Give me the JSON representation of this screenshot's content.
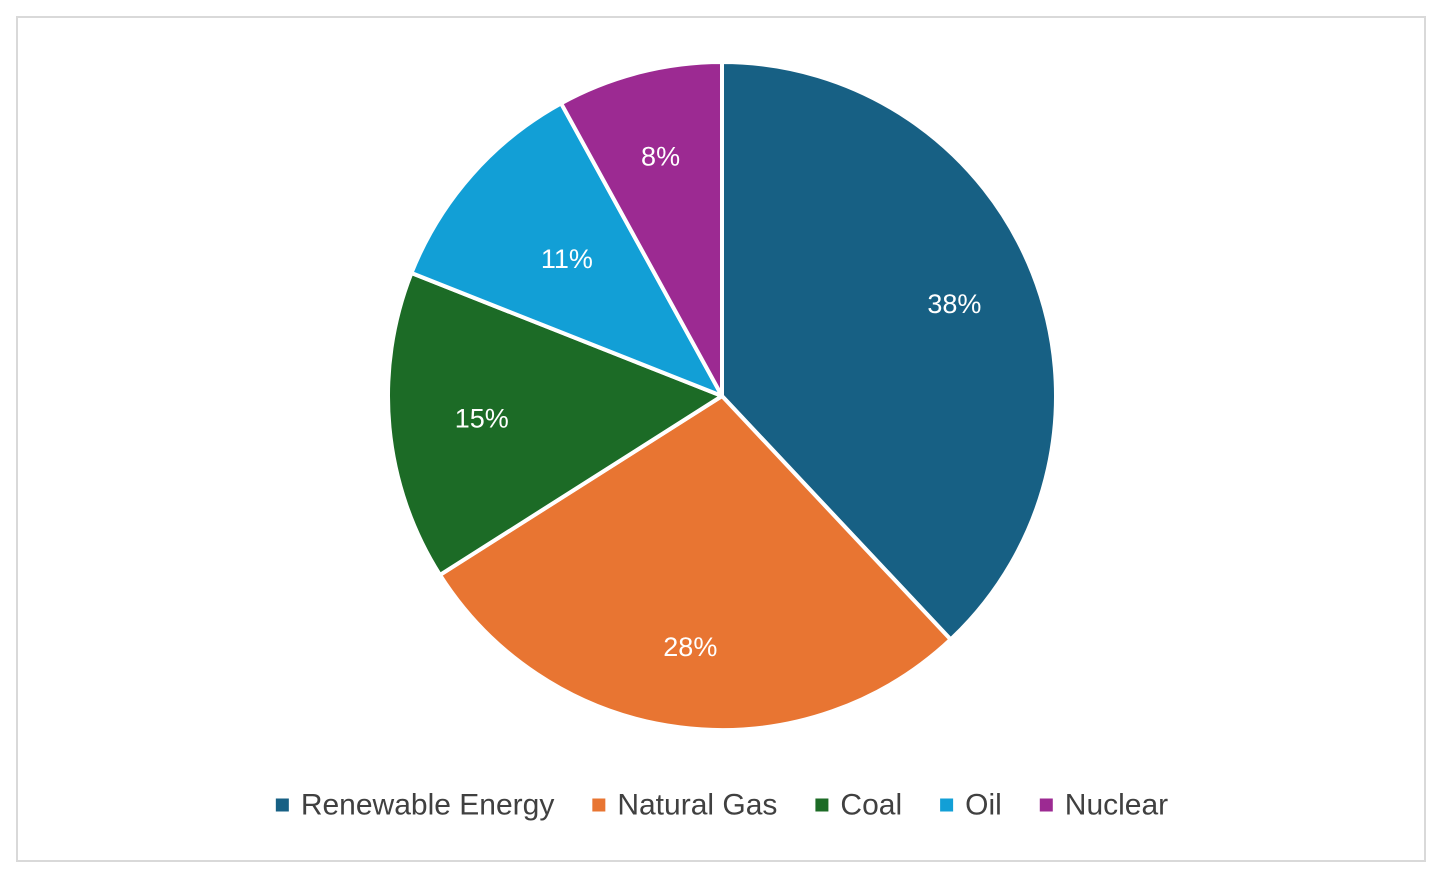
{
  "chart_data": {
    "type": "pie",
    "categories": [
      "Renewable Energy",
      "Natural Gas",
      "Coal",
      "Oil",
      "Nuclear"
    ],
    "values": [
      38,
      28,
      15,
      11,
      8
    ],
    "data_labels": [
      "38%",
      "28%",
      "15%",
      "11%",
      "8%"
    ],
    "colors": [
      "#176084",
      "#E87532",
      "#1C6B26",
      "#129FD6",
      "#9C2A92"
    ],
    "start_angle": "12 o'clock, clockwise",
    "legend_position": "bottom",
    "title": ""
  }
}
